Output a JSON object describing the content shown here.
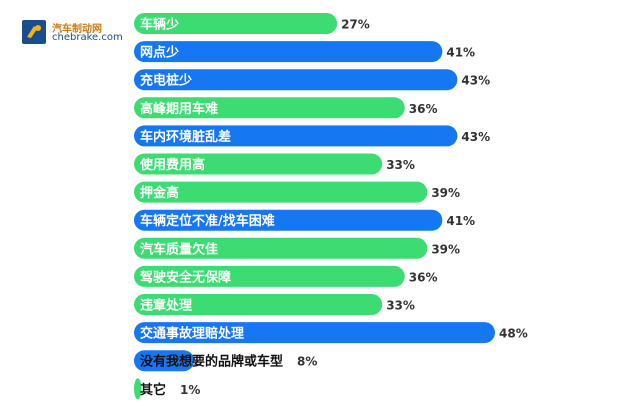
{
  "logo": {
    "title": "汽车制动网",
    "url_text": "chebrake.com",
    "icon": "brake-pad-icon"
  },
  "chart_data": {
    "type": "bar",
    "orientation": "horizontal",
    "categories": [
      "车辆少",
      "网点少",
      "充电桩少",
      "高峰期用车难",
      "车内环境脏乱差",
      "使用费用高",
      "押金高",
      "车辆定位不准/找车困难",
      "汽车质量欠佳",
      "驾驶安全无保障",
      "违章处理",
      "交通事故理赔处理",
      "没有我想要的品牌或车型",
      "其它"
    ],
    "values": [
      27,
      41,
      43,
      36,
      43,
      33,
      39,
      41,
      39,
      36,
      33,
      48,
      8,
      1
    ],
    "value_labels": [
      "27%",
      "41%",
      "43%",
      "36%",
      "43%",
      "33%",
      "39%",
      "41%",
      "39%",
      "36%",
      "33%",
      "48%",
      "8%",
      "1%"
    ],
    "bar_colors": [
      "#3ddc72",
      "#1677f2",
      "#1677f2",
      "#3ddc72",
      "#1677f2",
      "#3ddc72",
      "#3ddc72",
      "#1677f2",
      "#3ddc72",
      "#3ddc72",
      "#3ddc72",
      "#1677f2",
      "#1677f2",
      "#3ddc72"
    ],
    "xlim": [
      0,
      48
    ],
    "title": "",
    "xlabel": "",
    "ylabel": ""
  }
}
